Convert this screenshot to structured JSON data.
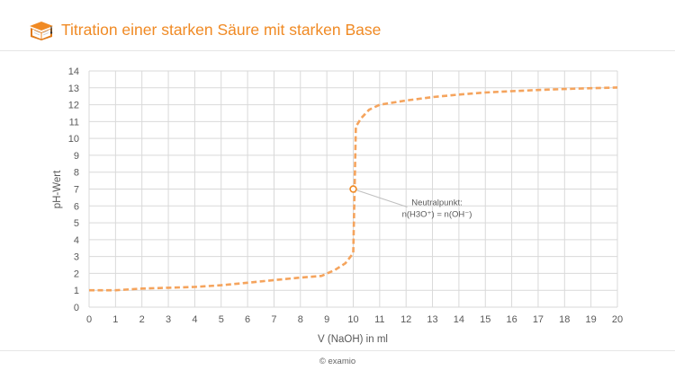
{
  "header": {
    "title": "Titration einer starken Säure mit starken Base",
    "logo_icon": "book-logo-icon"
  },
  "footer": {
    "copyright": "© examio"
  },
  "colors": {
    "accent": "#f08a24",
    "curve": "#f5a45d",
    "grid": "#d9d9d9",
    "axis_text": "#595959",
    "annotation_line": "#bfbfbf"
  },
  "chart_data": {
    "type": "line",
    "title": "Titration einer starken Säure mit starken Base",
    "xlabel": "V (NaOH) in ml",
    "ylabel": "pH-Wert",
    "xlim": [
      0,
      20
    ],
    "ylim": [
      0,
      14
    ],
    "xticks": [
      0,
      1,
      2,
      3,
      4,
      5,
      6,
      7,
      8,
      9,
      10,
      11,
      12,
      13,
      14,
      15,
      16,
      17,
      18,
      19,
      20
    ],
    "yticks": [
      0,
      1,
      2,
      3,
      4,
      5,
      6,
      7,
      8,
      9,
      10,
      11,
      12,
      13,
      14
    ],
    "grid": true,
    "line_style": "dashed",
    "series": [
      {
        "x": [
          0,
          1,
          2,
          3,
          4,
          5,
          6,
          7,
          8,
          8.8,
          9.3,
          9.7,
          9.9,
          10,
          10.05,
          10.1,
          10.3,
          10.6,
          11,
          12,
          13,
          14,
          15,
          16,
          17,
          18,
          19,
          20
        ],
        "y": [
          1.0,
          1.0,
          1.1,
          1.15,
          1.2,
          1.3,
          1.45,
          1.6,
          1.75,
          1.85,
          2.2,
          2.6,
          3.0,
          3.2,
          7.0,
          10.7,
          11.2,
          11.7,
          12.0,
          12.25,
          12.45,
          12.6,
          12.72,
          12.8,
          12.87,
          12.93,
          12.98,
          13.02
        ]
      }
    ],
    "annotation": {
      "point": {
        "x": 10,
        "y": 7
      },
      "label_line1": "Neutralpunkt:",
      "label_line2": "n(H3O⁺) = n(OH⁻)"
    }
  }
}
